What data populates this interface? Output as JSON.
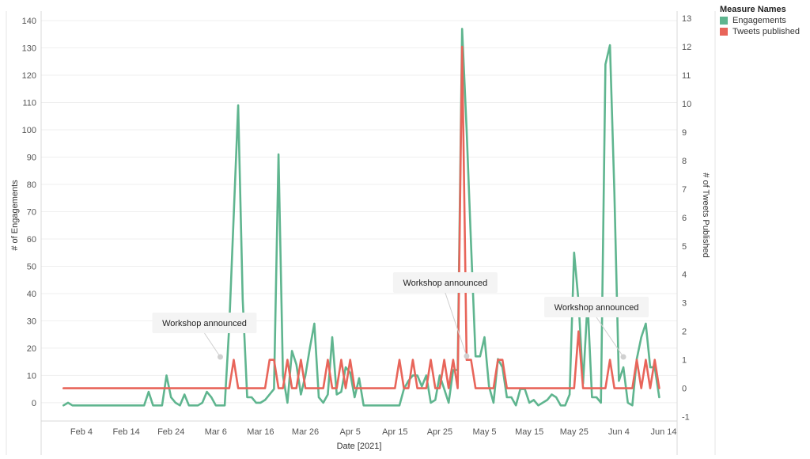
{
  "chart_data": {
    "type": "line",
    "xlabel": "Date [2021]",
    "ylabel_left": "# of Engagements",
    "ylabel_right": "# of Tweets Published",
    "x_ticks": [
      "Feb 4",
      "Feb 14",
      "Feb 24",
      "Mar 6",
      "Mar 16",
      "Mar 26",
      "Apr 5",
      "Apr 15",
      "Apr 25",
      "May 5",
      "May 15",
      "May 25",
      "Jun 4",
      "Jun 14"
    ],
    "y_left_ticks": [
      0,
      10,
      20,
      30,
      40,
      50,
      60,
      70,
      80,
      90,
      100,
      110,
      120,
      130,
      140
    ],
    "y_right_ticks": [
      -1,
      0,
      1,
      2,
      3,
      4,
      5,
      6,
      7,
      8,
      9,
      10,
      11,
      12,
      13
    ],
    "y_left_range": [
      -6.7,
      143.5
    ],
    "y_right_range": [
      -1.15,
      13.25
    ],
    "x_range": [
      "2021-01-26",
      "2021-06-17"
    ],
    "legend": {
      "title": "Measure Names",
      "position": "top-right",
      "items": [
        {
          "label": "Engagements",
          "color": "#5fb58f"
        },
        {
          "label": "Tweets published",
          "color": "#e8655a"
        }
      ]
    },
    "annotations": [
      {
        "text": "Workshop announced",
        "date": "2021-03-07"
      },
      {
        "text": "Workshop announced",
        "date": "2021-05-01"
      },
      {
        "text": "Workshop announced",
        "date": "2021-06-05"
      }
    ],
    "series": [
      {
        "name": "Engagements",
        "color": "#5fb58f",
        "axis": "left",
        "points": [
          [
            "2021-01-31",
            -1
          ],
          [
            "2021-02-01",
            0
          ],
          [
            "2021-02-02",
            -1
          ],
          [
            "2021-02-04",
            -1
          ],
          [
            "2021-02-06",
            -1
          ],
          [
            "2021-02-08",
            -1
          ],
          [
            "2021-02-10",
            -1
          ],
          [
            "2021-02-12",
            -1
          ],
          [
            "2021-02-14",
            -1
          ],
          [
            "2021-02-16",
            -1
          ],
          [
            "2021-02-18",
            -1
          ],
          [
            "2021-02-19",
            4
          ],
          [
            "2021-02-20",
            -1
          ],
          [
            "2021-02-22",
            -1
          ],
          [
            "2021-02-23",
            10
          ],
          [
            "2021-02-24",
            2
          ],
          [
            "2021-02-25",
            0
          ],
          [
            "2021-02-26",
            -1
          ],
          [
            "2021-02-27",
            3
          ],
          [
            "2021-02-28",
            -1
          ],
          [
            "2021-03-02",
            -1
          ],
          [
            "2021-03-03",
            0
          ],
          [
            "2021-03-04",
            4
          ],
          [
            "2021-03-05",
            2
          ],
          [
            "2021-03-06",
            -1
          ],
          [
            "2021-03-08",
            -1
          ],
          [
            "2021-03-09",
            28
          ],
          [
            "2021-03-11",
            109
          ],
          [
            "2021-03-12",
            38
          ],
          [
            "2021-03-13",
            2
          ],
          [
            "2021-03-14",
            2
          ],
          [
            "2021-03-15",
            0
          ],
          [
            "2021-03-16",
            0
          ],
          [
            "2021-03-17",
            1
          ],
          [
            "2021-03-19",
            5
          ],
          [
            "2021-03-20",
            91
          ],
          [
            "2021-03-21",
            10
          ],
          [
            "2021-03-22",
            0
          ],
          [
            "2021-03-23",
            19
          ],
          [
            "2021-03-24",
            14
          ],
          [
            "2021-03-25",
            3
          ],
          [
            "2021-03-26",
            10
          ],
          [
            "2021-03-27",
            20
          ],
          [
            "2021-03-28",
            29
          ],
          [
            "2021-03-29",
            2
          ],
          [
            "2021-03-30",
            0
          ],
          [
            "2021-03-31",
            3
          ],
          [
            "2021-04-01",
            24
          ],
          [
            "2021-04-02",
            3
          ],
          [
            "2021-04-03",
            4
          ],
          [
            "2021-04-04",
            13
          ],
          [
            "2021-04-05",
            11
          ],
          [
            "2021-04-06",
            2
          ],
          [
            "2021-04-07",
            9
          ],
          [
            "2021-04-08",
            -1
          ],
          [
            "2021-04-10",
            -1
          ],
          [
            "2021-04-12",
            -1
          ],
          [
            "2021-04-14",
            -1
          ],
          [
            "2021-04-16",
            -1
          ],
          [
            "2021-04-17",
            5
          ],
          [
            "2021-04-18",
            8
          ],
          [
            "2021-04-19",
            10
          ],
          [
            "2021-04-20",
            10
          ],
          [
            "2021-04-21",
            6
          ],
          [
            "2021-04-22",
            10
          ],
          [
            "2021-04-23",
            0
          ],
          [
            "2021-04-24",
            1
          ],
          [
            "2021-04-25",
            10
          ],
          [
            "2021-04-26",
            5
          ],
          [
            "2021-04-27",
            0
          ],
          [
            "2021-04-28",
            12
          ],
          [
            "2021-04-29",
            12
          ],
          [
            "2021-04-30",
            137
          ],
          [
            "2021-05-01",
            100
          ],
          [
            "2021-05-02",
            58
          ],
          [
            "2021-05-03",
            17
          ],
          [
            "2021-05-04",
            17
          ],
          [
            "2021-05-05",
            24
          ],
          [
            "2021-05-06",
            6
          ],
          [
            "2021-05-07",
            0
          ],
          [
            "2021-05-08",
            16
          ],
          [
            "2021-05-09",
            13
          ],
          [
            "2021-05-10",
            2
          ],
          [
            "2021-05-11",
            2
          ],
          [
            "2021-05-12",
            -1
          ],
          [
            "2021-05-13",
            5
          ],
          [
            "2021-05-14",
            5
          ],
          [
            "2021-05-15",
            0
          ],
          [
            "2021-05-16",
            1
          ],
          [
            "2021-05-17",
            -1
          ],
          [
            "2021-05-19",
            1
          ],
          [
            "2021-05-20",
            3
          ],
          [
            "2021-05-21",
            2
          ],
          [
            "2021-05-22",
            -1
          ],
          [
            "2021-05-23",
            -1
          ],
          [
            "2021-05-24",
            3
          ],
          [
            "2021-05-25",
            55
          ],
          [
            "2021-05-26",
            37
          ],
          [
            "2021-05-27",
            7
          ],
          [
            "2021-05-28",
            37
          ],
          [
            "2021-05-29",
            2
          ],
          [
            "2021-05-30",
            2
          ],
          [
            "2021-05-31",
            0
          ],
          [
            "2021-06-01",
            124
          ],
          [
            "2021-06-02",
            131
          ],
          [
            "2021-06-03",
            77
          ],
          [
            "2021-06-04",
            8
          ],
          [
            "2021-06-05",
            13
          ],
          [
            "2021-06-06",
            0
          ],
          [
            "2021-06-07",
            -1
          ],
          [
            "2021-06-08",
            16
          ],
          [
            "2021-06-09",
            24
          ],
          [
            "2021-06-10",
            29
          ],
          [
            "2021-06-11",
            13
          ],
          [
            "2021-06-12",
            13
          ],
          [
            "2021-06-13",
            2
          ]
        ]
      },
      {
        "name": "Tweets published",
        "color": "#e8655a",
        "axis": "right",
        "points": [
          [
            "2021-01-31",
            0
          ],
          [
            "2021-03-09",
            0
          ],
          [
            "2021-03-10",
            1
          ],
          [
            "2021-03-11",
            0
          ],
          [
            "2021-03-17",
            0
          ],
          [
            "2021-03-18",
            1
          ],
          [
            "2021-03-19",
            1
          ],
          [
            "2021-03-20",
            0
          ],
          [
            "2021-03-21",
            0
          ],
          [
            "2021-03-22",
            1
          ],
          [
            "2021-03-23",
            0
          ],
          [
            "2021-03-24",
            0
          ],
          [
            "2021-03-25",
            1
          ],
          [
            "2021-03-26",
            0
          ],
          [
            "2021-03-30",
            0
          ],
          [
            "2021-03-31",
            1
          ],
          [
            "2021-04-01",
            0
          ],
          [
            "2021-04-02",
            0
          ],
          [
            "2021-04-03",
            1
          ],
          [
            "2021-04-04",
            0
          ],
          [
            "2021-04-05",
            1
          ],
          [
            "2021-04-06",
            0
          ],
          [
            "2021-04-15",
            0
          ],
          [
            "2021-04-16",
            1
          ],
          [
            "2021-04-17",
            0
          ],
          [
            "2021-04-18",
            0
          ],
          [
            "2021-04-19",
            1
          ],
          [
            "2021-04-20",
            0
          ],
          [
            "2021-04-22",
            0
          ],
          [
            "2021-04-23",
            1
          ],
          [
            "2021-04-24",
            0
          ],
          [
            "2021-04-25",
            0
          ],
          [
            "2021-04-26",
            1
          ],
          [
            "2021-04-27",
            0
          ],
          [
            "2021-04-28",
            1
          ],
          [
            "2021-04-29",
            0
          ],
          [
            "2021-04-30",
            12
          ],
          [
            "2021-05-01",
            1
          ],
          [
            "2021-05-02",
            1
          ],
          [
            "2021-05-03",
            0
          ],
          [
            "2021-05-07",
            0
          ],
          [
            "2021-05-08",
            1
          ],
          [
            "2021-05-09",
            1
          ],
          [
            "2021-05-10",
            0
          ],
          [
            "2021-05-25",
            0
          ],
          [
            "2021-05-26",
            2
          ],
          [
            "2021-05-27",
            0
          ],
          [
            "2021-06-01",
            0
          ],
          [
            "2021-06-02",
            1
          ],
          [
            "2021-06-03",
            0
          ],
          [
            "2021-06-07",
            0
          ],
          [
            "2021-06-08",
            1
          ],
          [
            "2021-06-09",
            0
          ],
          [
            "2021-06-10",
            1
          ],
          [
            "2021-06-11",
            0
          ],
          [
            "2021-06-12",
            1
          ],
          [
            "2021-06-13",
            0
          ]
        ]
      }
    ]
  }
}
